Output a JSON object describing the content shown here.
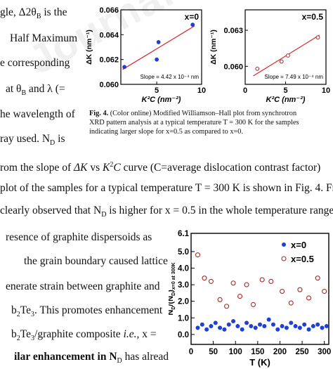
{
  "left_column_top": [
    "gle, Δ 2θ",
    "B",
    " is the",
    "Half Maximum",
    "e corresponding",
    "at  θ",
    "B",
    " and  λ (=",
    "he wavelength of",
    "ray  used.  N",
    "D",
    "  is"
  ],
  "full_width_lines": [
    "rom the slope of  ΔK  vs  K²C  curve (C=average dislocation contrast factor)",
    "plot of the samples for a typical temperature T = 300 K is shown in Fig. 4. From",
    "clearly observed that N₀ is higher for x = 0.5 in the whole temperature range o"
  ],
  "full_width_plain": {
    "l1_a": "rom the slope of  ",
    "l1_b": "ΔK",
    "l1_c": "  vs  ",
    "l1_d": "K",
    "l1_e": "2",
    "l1_f": "C",
    "l1_g": "  curve (C=average dislocation contrast factor)",
    "l2": "plot of the samples for a typical temperature T = 300 K is shown in Fig. 4. From",
    "l3_a": "clearly observed that N",
    "l3_b": "D",
    "l3_c": " is higher for x = 0.5 in the whole temperature range o"
  },
  "left_column_bottom": {
    "b1": "resence of graphite dispersoids as",
    "b2": "the grain boundary caused lattice",
    "b3": "enerate strain between graphite and",
    "b4_a": "b",
    "b4_b": "2",
    "b4_c": "Te",
    "b4_d": "3",
    "b4_e": ". This promotes enhancement",
    "b5_a": "b",
    "b5_b": "2",
    "b5_c": "Te",
    "b5_d": "3",
    "b5_e": "/graphite composite ",
    "b5_f": "i.e.",
    "b5_g": ",  x =",
    "b6_a": "ilar enhancement in N",
    "b6_b": "D",
    "b6_c": " has already"
  },
  "top_text": {
    "t1_a": "gle,  Δ2θ",
    "t1_b": "B",
    "t1_c": "  is  the",
    "t2": "Half  Maximum",
    "t3": "e  corresponding",
    "t4_a": "at  θ",
    "t4_b": "B",
    "t4_c": "  and  λ  (=",
    "t5": "he wavelength of",
    "t6_a": "ray  used.  N",
    "t6_b": "D",
    "t6_c": "  is"
  },
  "figure_caption": {
    "label": "Fig.  4.",
    "line1": " (Color online) Modified Williamson–Hall plot from synchrotron",
    "line2": "XRD pattern analysis at a typical temperature T = 300 K for the samples",
    "line3": "indicating larger slope for x=0.5 as compared to x=0."
  },
  "colors": {
    "fit_line": "#d62728",
    "x0_points": "#1f3fd6",
    "x05_points": "#a52a2a"
  },
  "chart_data": [
    {
      "type": "scatter",
      "legend": "x=0",
      "ylabel_text": "ΔK (nm⁻¹)",
      "xlabel_text": "K²C (nm⁻²)",
      "annotation": "Slope = 4.42 x 10⁻⁴ nm",
      "xlim": [
        1,
        10
      ],
      "ylim": [
        0.06,
        0.066
      ],
      "xticks": [
        "5",
        "10"
      ],
      "yticks": [
        "0.060",
        "0.062",
        "0.064",
        "0.066"
      ],
      "points": [
        {
          "x": 1.4,
          "y": 0.0614
        },
        {
          "x": 5.0,
          "y": 0.062
        },
        {
          "x": 5.2,
          "y": 0.0634
        },
        {
          "x": 9.0,
          "y": 0.0648
        }
      ],
      "fit": {
        "x": [
          1.2,
          9.2
        ],
        "y": [
          0.0612,
          0.0647
        ]
      }
    },
    {
      "type": "scatter",
      "legend": "x=0.5",
      "ylabel_text": "ΔK (nm⁻¹)",
      "xlabel_text": "K²C (nm⁻²)",
      "annotation": "Slope = 7.49 x 10⁻⁴ nm",
      "xlim": [
        0,
        10
      ],
      "ylim": [
        0.0585,
        0.0647
      ],
      "xticks": [
        "0",
        "5",
        "10"
      ],
      "yticks": [
        "0.057",
        "0.060",
        "0.063",
        "0.066"
      ],
      "points": [
        {
          "x": 1.5,
          "y": 0.0598
        },
        {
          "x": 4.5,
          "y": 0.0604
        },
        {
          "x": 5.3,
          "y": 0.0609
        },
        {
          "x": 9.0,
          "y": 0.0624
        }
      ],
      "fit": {
        "x": [
          1.0,
          9.2
        ],
        "y": [
          0.0592,
          0.0626
        ]
      }
    },
    {
      "type": "scatter",
      "ylabel_text": "N",
      "ylabel_sub": "D",
      "ylabel_mid": "/(N",
      "ylabel_sub2": "D",
      "ylabel_tail": ")",
      "ylabel_sub3": "x=0 at 300K",
      "xlabel_text": "T (K)",
      "xlim": [
        0,
        310
      ],
      "ylim": [
        -0.6,
        6.1
      ],
      "xticks": [
        "0",
        "50",
        "100",
        "150",
        "200",
        "250",
        "300"
      ],
      "yticks": [
        "0.0",
        "1.0",
        "2.0",
        "3.0",
        "4.0",
        "5.0",
        "6.1"
      ],
      "series": [
        {
          "name": "x=0",
          "x": [
            15,
            25,
            35,
            45,
            55,
            65,
            75,
            85,
            95,
            105,
            115,
            125,
            135,
            145,
            155,
            165,
            175,
            185,
            195,
            205,
            215,
            225,
            235,
            245,
            255,
            265,
            275,
            285,
            295,
            305
          ],
          "y": [
            0.4,
            0.6,
            0.3,
            0.5,
            0.7,
            0.4,
            0.3,
            0.6,
            0.8,
            0.5,
            0.3,
            0.7,
            0.5,
            0.4,
            0.6,
            0.5,
            0.9,
            0.6,
            0.3,
            0.5,
            0.4,
            0.7,
            0.5,
            0.4,
            0.6,
            0.3,
            0.5,
            0.6,
            0.4,
            0.5
          ]
        },
        {
          "name": "x=0.5",
          "x": [
            15,
            30,
            45,
            65,
            80,
            95,
            110,
            125,
            140,
            160,
            180,
            205,
            225,
            245,
            265,
            285,
            300
          ],
          "y": [
            4.8,
            3.4,
            3.2,
            2.1,
            1.7,
            3.1,
            2.3,
            3.0,
            1.8,
            3.3,
            3.2,
            2.6,
            1.9,
            2.7,
            2.2,
            3.4,
            2.6
          ]
        }
      ]
    }
  ],
  "watermark": "Journal Pre-proof"
}
